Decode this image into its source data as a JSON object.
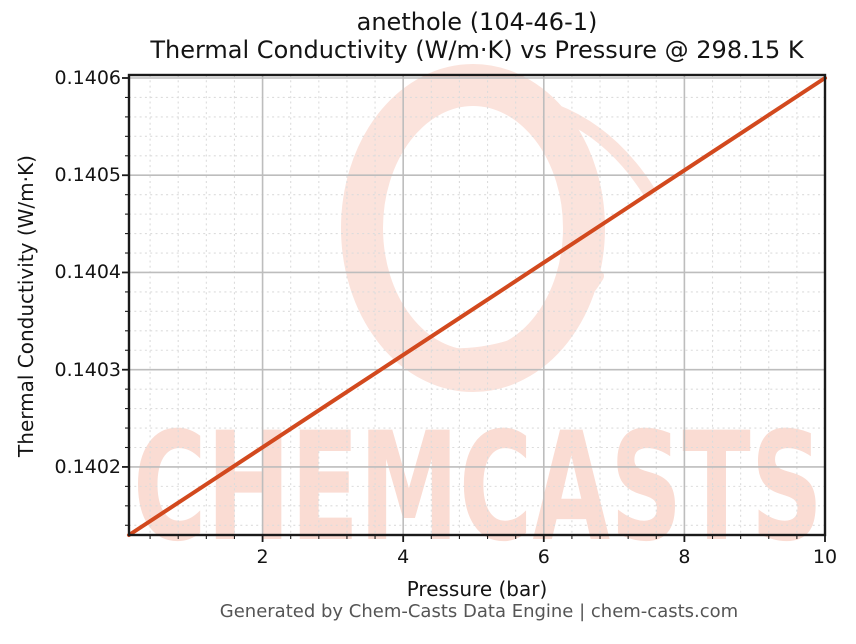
{
  "header": {
    "title_line1": "anethole (104-46-1)",
    "title_line2": "Thermal Conductivity (W/m·K) vs Pressure @ 298.15 K"
  },
  "footer": {
    "text": "Generated by Chem-Casts Data Engine | chem-casts.com"
  },
  "watermark": {
    "text": "CHEMCASTS",
    "text_color": "#fadcd3",
    "ring_color": "#fbe3dc"
  },
  "chart_data": {
    "type": "line",
    "title": "anethole (104-46-1)",
    "subtitle": "Thermal Conductivity (W/m·K) vs Pressure @ 298.15 K",
    "xlabel": "Pressure (bar)",
    "ylabel": "Thermal Conductivity (W/m·K)",
    "xlim": [
      0.1,
      10
    ],
    "ylim": [
      0.14013,
      0.1406
    ],
    "x_major_ticks": [
      2,
      4,
      6,
      8,
      10
    ],
    "x_tick_labels": [
      "2",
      "4",
      "6",
      "8",
      "10"
    ],
    "x_minor_step": 0.4,
    "y_major_ticks": [
      0.1402,
      0.1403,
      0.1404,
      0.1405,
      0.1406
    ],
    "y_tick_labels": [
      "0.1402",
      "0.1403",
      "0.1404",
      "0.1405",
      "0.1406"
    ],
    "y_minor_step": 2e-05,
    "grid": true,
    "legend": false,
    "series": [
      {
        "name": "Thermal Conductivity",
        "color": "#d2491e",
        "x": [
          0.1,
          1,
          2,
          3,
          4,
          5,
          6,
          7,
          8,
          9,
          10
        ],
        "y": [
          0.14013,
          0.1401727,
          0.1402202,
          0.1402677,
          0.1403152,
          0.1403626,
          0.1404101,
          0.1404576,
          0.1405051,
          0.1405525,
          0.1406
        ]
      }
    ]
  }
}
